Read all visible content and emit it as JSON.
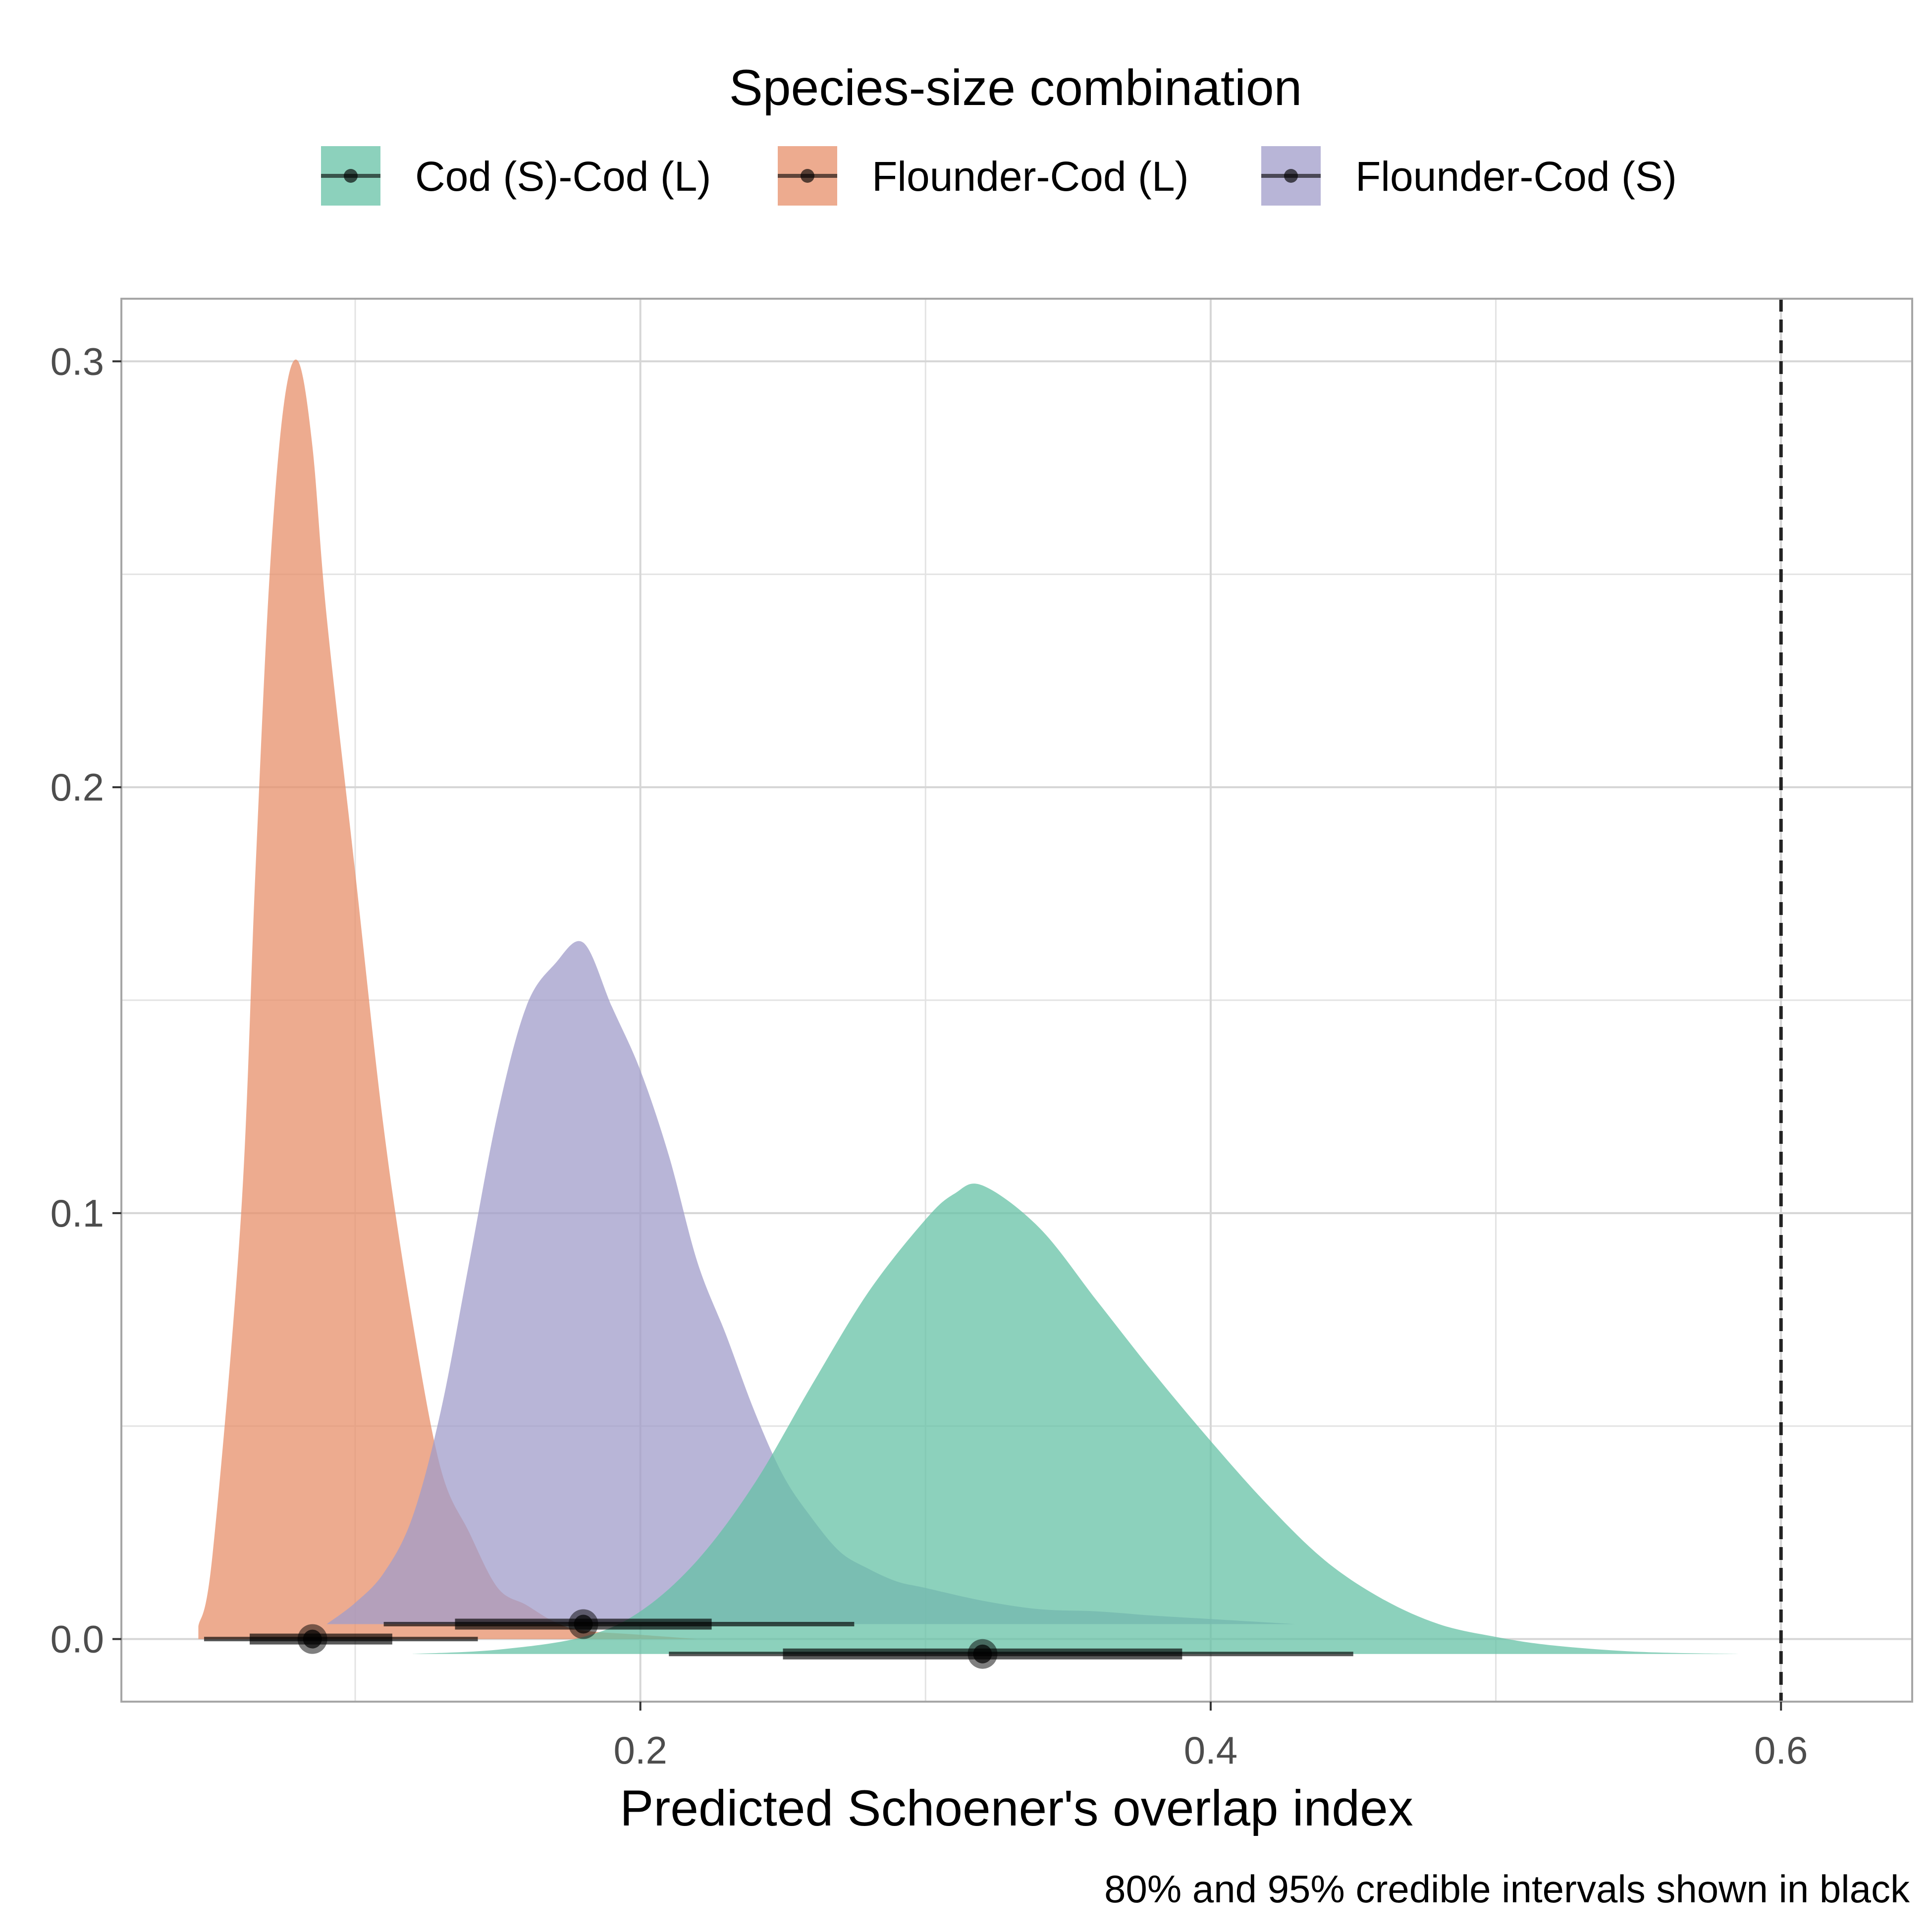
{
  "chart_data": {
    "type": "area",
    "title": "",
    "xlabel": "Predicted Schoener's overlap index",
    "ylabel": "",
    "caption": "80% and 95% credible intervals shown in black",
    "xlim": [
      0.018,
      0.646
    ],
    "ylim": [
      -0.0147,
      0.3147
    ],
    "x_ticks": [
      0.2,
      0.4,
      0.6
    ],
    "x_tick_labels": [
      "0.2",
      "0.4",
      "0.6"
    ],
    "y_ticks": [
      0.0,
      0.1,
      0.2,
      0.3
    ],
    "y_tick_labels": [
      "0.0",
      "0.1",
      "0.2",
      "0.3"
    ],
    "grid": true,
    "reference_line": {
      "x": 0.6,
      "style": "dashed"
    },
    "legend": {
      "title": "Species-size combination",
      "position": "top"
    },
    "series": [
      {
        "name": "Cod (S)-Cod (L)",
        "color": "#66C2A5",
        "baseline": -0.0035,
        "density_x": [
          0.12,
          0.15,
          0.18,
          0.2,
          0.22,
          0.24,
          0.26,
          0.28,
          0.3,
          0.31,
          0.32,
          0.34,
          0.36,
          0.38,
          0.4,
          0.42,
          0.44,
          0.46,
          0.48,
          0.5,
          0.52,
          0.55,
          0.585
        ],
        "density_y": [
          0.0,
          0.001,
          0.004,
          0.01,
          0.022,
          0.04,
          0.063,
          0.085,
          0.102,
          0.108,
          0.11,
          0.1,
          0.083,
          0.066,
          0.05,
          0.035,
          0.022,
          0.013,
          0.007,
          0.004,
          0.002,
          0.0005,
          0.0
        ],
        "median": 0.32,
        "ci80": [
          0.25,
          0.39
        ],
        "ci95": [
          0.21,
          0.45
        ]
      },
      {
        "name": "Flounder-Cod (L)",
        "color": "#E78F6A",
        "baseline": 0.0,
        "density_x": [
          0.045,
          0.05,
          0.06,
          0.065,
          0.07,
          0.075,
          0.08,
          0.085,
          0.09,
          0.1,
          0.11,
          0.12,
          0.13,
          0.14,
          0.15,
          0.16,
          0.17,
          0.18,
          0.2,
          0.22
        ],
        "density_y": [
          0.003,
          0.02,
          0.1,
          0.18,
          0.25,
          0.29,
          0.3,
          0.28,
          0.24,
          0.18,
          0.12,
          0.075,
          0.04,
          0.025,
          0.012,
          0.008,
          0.004,
          0.002,
          0.001,
          0.0
        ],
        "median": 0.085,
        "ci80": [
          0.063,
          0.113
        ],
        "ci95": [
          0.047,
          0.143
        ]
      },
      {
        "name": "Flounder-Cod (S)",
        "color": "#A09CC9",
        "baseline": 0.0035,
        "density_x": [
          0.09,
          0.1,
          0.11,
          0.12,
          0.13,
          0.14,
          0.15,
          0.16,
          0.17,
          0.18,
          0.19,
          0.2,
          0.21,
          0.22,
          0.23,
          0.24,
          0.25,
          0.26,
          0.27,
          0.28,
          0.29,
          0.3,
          0.32,
          0.34,
          0.36,
          0.38,
          0.4,
          0.43
        ],
        "density_y": [
          0.0,
          0.005,
          0.012,
          0.025,
          0.05,
          0.085,
          0.12,
          0.145,
          0.155,
          0.16,
          0.145,
          0.13,
          0.11,
          0.085,
          0.068,
          0.05,
          0.035,
          0.025,
          0.017,
          0.013,
          0.01,
          0.0085,
          0.0055,
          0.0035,
          0.003,
          0.002,
          0.0012,
          0.0
        ],
        "median": 0.18,
        "ci80": [
          0.135,
          0.225
        ],
        "ci95": [
          0.11,
          0.275
        ]
      }
    ]
  }
}
